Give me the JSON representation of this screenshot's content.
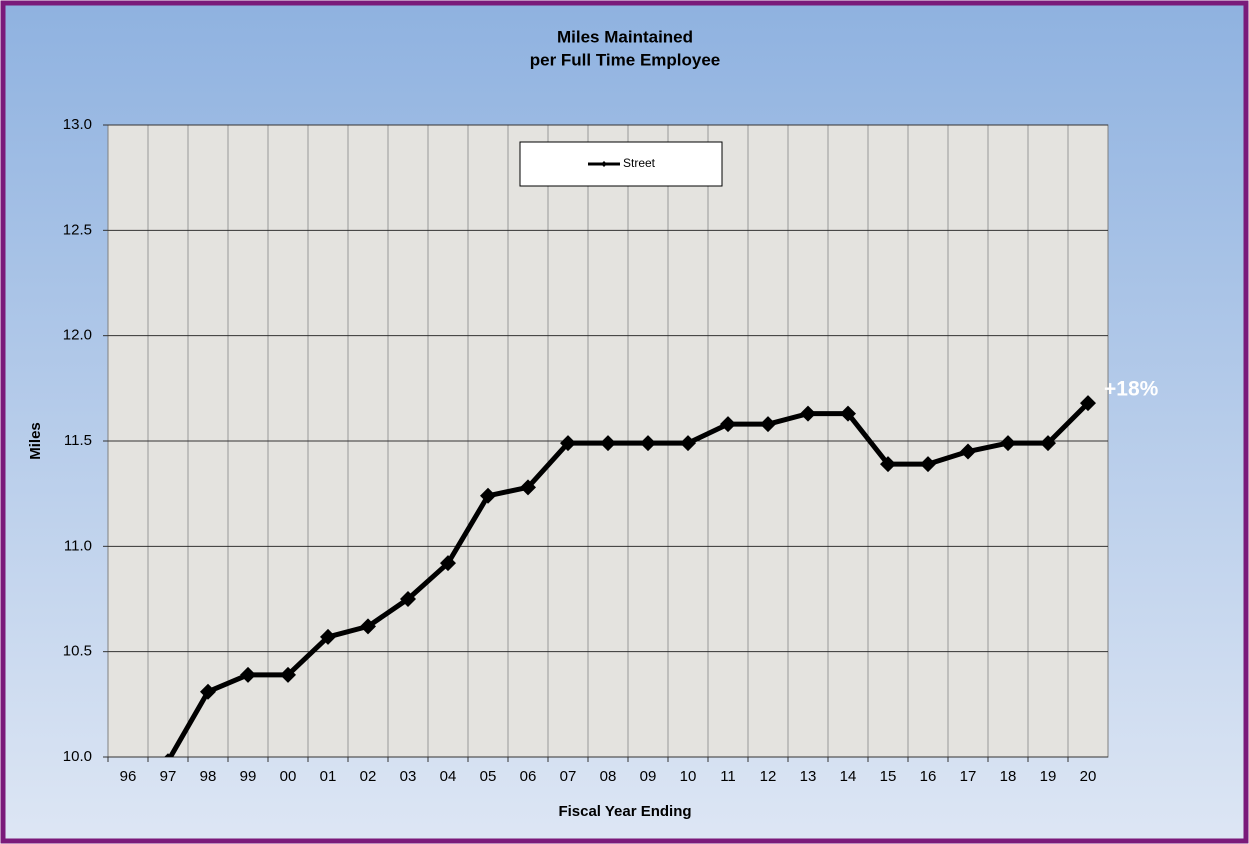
{
  "chart_data": {
    "type": "line",
    "title": "Miles Maintained",
    "subtitle": "per Full Time Employee",
    "x_label": "Fiscal Year Ending",
    "y_label": "Miles",
    "categories": [
      "96",
      "97",
      "98",
      "99",
      "00",
      "01",
      "02",
      "03",
      "04",
      "05",
      "06",
      "07",
      "08",
      "09",
      "10",
      "11",
      "12",
      "13",
      "14",
      "15",
      "16",
      "17",
      "18",
      "19",
      "20"
    ],
    "series": [
      {
        "name": "Street",
        "color": "#000000",
        "values": [
          9.9,
          9.98,
          10.31,
          10.39,
          10.39,
          10.57,
          10.62,
          10.75,
          10.92,
          11.24,
          11.28,
          11.49,
          11.49,
          11.49,
          11.49,
          11.58,
          11.58,
          11.63,
          11.63,
          11.39,
          11.39,
          11.45,
          11.49,
          11.49,
          11.68
        ]
      }
    ],
    "ylim": [
      10.0,
      13.0
    ],
    "yticks": [
      {
        "value": 10,
        "label": "10.0"
      },
      {
        "value": 10.5,
        "label": "10.5"
      },
      {
        "value": 11,
        "label": "11.0"
      },
      {
        "value": 11.5,
        "label": "11.5"
      },
      {
        "value": 12,
        "label": "12.0"
      },
      {
        "value": 12.5,
        "label": "12.5"
      },
      {
        "value": 13,
        "label": "13.0"
      }
    ],
    "grid": true,
    "legend": "top",
    "annotation": "+18%"
  }
}
